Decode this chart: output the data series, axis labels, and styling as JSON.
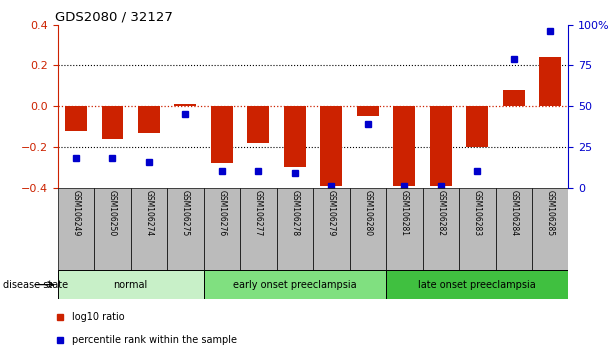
{
  "title": "GDS2080 / 32127",
  "samples": [
    "GSM106249",
    "GSM106250",
    "GSM106274",
    "GSM106275",
    "GSM106276",
    "GSM106277",
    "GSM106278",
    "GSM106279",
    "GSM106280",
    "GSM106281",
    "GSM106282",
    "GSM106283",
    "GSM106284",
    "GSM106285"
  ],
  "log10_ratio": [
    -0.12,
    -0.16,
    -0.13,
    0.01,
    -0.28,
    -0.18,
    -0.3,
    -0.39,
    -0.05,
    -0.39,
    -0.39,
    -0.2,
    0.08,
    0.24
  ],
  "percentile_rank": [
    18,
    18,
    16,
    45,
    10,
    10,
    9,
    1,
    39,
    1,
    1,
    10,
    79,
    96
  ],
  "disease_groups": [
    {
      "label": "normal",
      "start": 0,
      "end": 4,
      "color": "#c8f0c8"
    },
    {
      "label": "early onset preeclampsia",
      "start": 4,
      "end": 9,
      "color": "#80e080"
    },
    {
      "label": "late onset preeclampsia",
      "start": 9,
      "end": 14,
      "color": "#40c040"
    }
  ],
  "bar_color": "#cc2200",
  "dot_color": "#0000cc",
  "ylim_left": [
    -0.4,
    0.4
  ],
  "ylim_right": [
    0,
    100
  ],
  "yticks_left": [
    -0.4,
    -0.2,
    0.0,
    0.2,
    0.4
  ],
  "yticks_right": [
    0,
    25,
    50,
    75,
    100
  ],
  "dotted_lines": [
    -0.2,
    0.2
  ],
  "zero_line": 0.0,
  "left_tick_color": "#cc2200",
  "right_tick_color": "#0000cc",
  "background_color": "#ffffff",
  "tick_bg_color": "#bbbbbb",
  "legend_items": [
    {
      "label": "log10 ratio",
      "color": "#cc2200"
    },
    {
      "label": "percentile rank within the sample",
      "color": "#0000cc"
    }
  ]
}
